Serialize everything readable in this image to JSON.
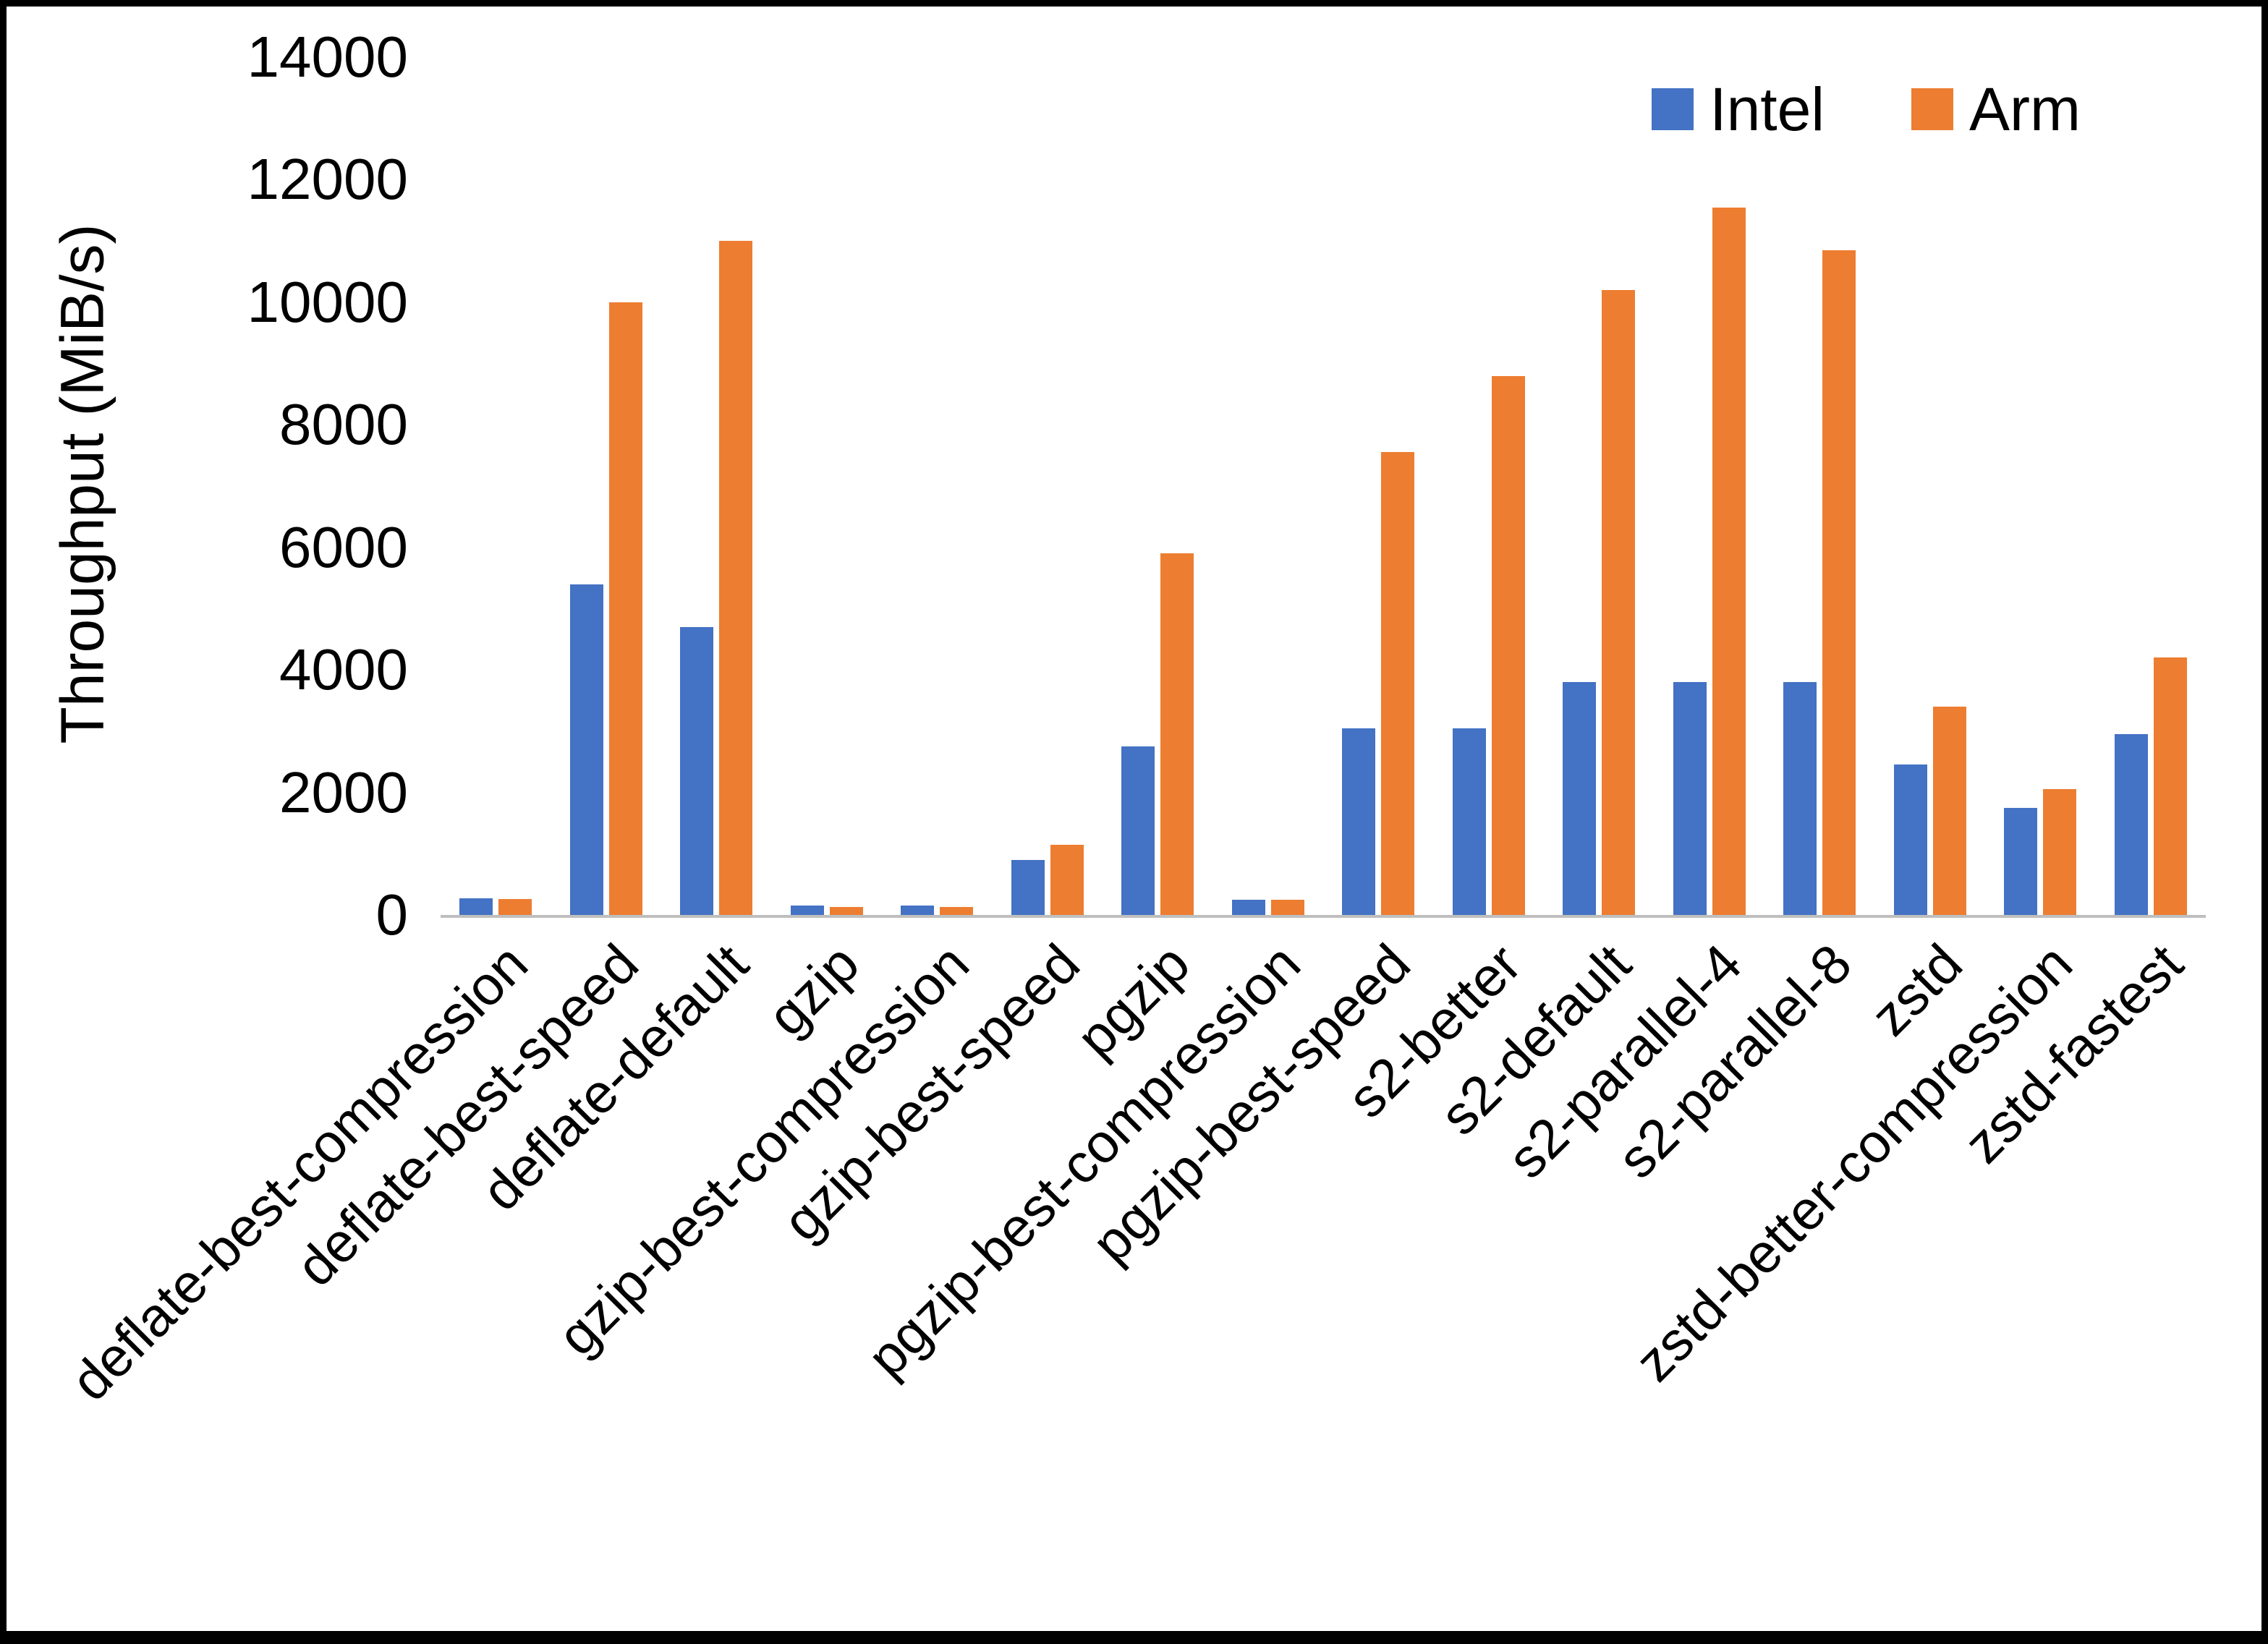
{
  "chart_data": {
    "type": "bar",
    "title": "",
    "xlabel": "",
    "ylabel": "Throughput (MiB/s)",
    "ylim": [
      0,
      14000
    ],
    "yticks": [
      0,
      2000,
      4000,
      6000,
      8000,
      10000,
      12000,
      14000
    ],
    "grid": false,
    "legend_position": "top-right",
    "axis_line_color": "#bfbfbf",
    "categories": [
      "deflate-best-compression",
      "deflate-best-speed",
      "deflate-default",
      "gzip",
      "gzip-best-compression",
      "gzip-best-speed",
      "pgzip",
      "pgzip-best-compression",
      "pgzip-best-speed",
      "s2-better",
      "s2-default",
      "s2-parallel-4",
      "s2-parallel-8",
      "zstd",
      "zstd-better-compression",
      "zstd-fastest"
    ],
    "series": [
      {
        "name": "Intel",
        "color": "#4472C4",
        "values": [
          270,
          5400,
          4700,
          150,
          150,
          900,
          2750,
          250,
          3050,
          3050,
          3800,
          3800,
          3800,
          2450,
          1750,
          2950
        ]
      },
      {
        "name": "Arm",
        "color": "#ED7D31",
        "values": [
          260,
          10000,
          11000,
          130,
          130,
          1150,
          5900,
          250,
          7550,
          8800,
          10200,
          11550,
          10850,
          3400,
          2050,
          4200
        ]
      }
    ]
  }
}
